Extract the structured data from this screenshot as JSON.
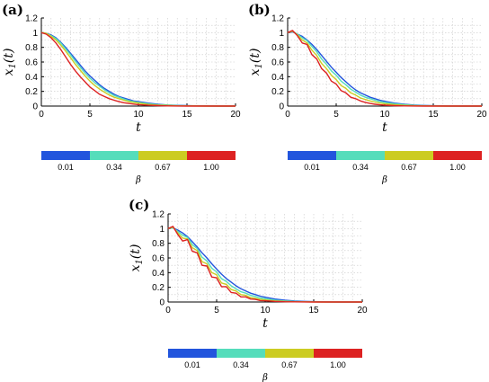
{
  "chart_data": [
    {
      "panel": "(a)",
      "type": "line",
      "xlabel": "t",
      "ylabel": "x_1(t)",
      "xlim": [
        0,
        20
      ],
      "ylim": [
        0,
        1.2
      ],
      "xticks": [
        "0",
        "5",
        "10",
        "15",
        "20"
      ],
      "yticks": [
        "0",
        "0.2",
        "0.4",
        "0.6",
        "0.8",
        "1",
        "1.2"
      ],
      "grid": true,
      "x": [
        0,
        0.5,
        1,
        1.5,
        2,
        2.5,
        3,
        3.5,
        4,
        4.5,
        5,
        5.5,
        6,
        6.5,
        7,
        7.5,
        8,
        8.5,
        9,
        9.5,
        10,
        11,
        12,
        13,
        14,
        15,
        16,
        17,
        18,
        19,
        20
      ],
      "series": [
        {
          "beta": "0.01",
          "color": "#2255dd",
          "values": [
            1.0,
            0.99,
            0.97,
            0.93,
            0.87,
            0.8,
            0.72,
            0.64,
            0.56,
            0.48,
            0.41,
            0.35,
            0.29,
            0.24,
            0.2,
            0.16,
            0.13,
            0.11,
            0.09,
            0.07,
            0.06,
            0.04,
            0.025,
            0.015,
            0.01,
            0.006,
            0.003,
            0.002,
            0.001,
            0.0,
            0.0
          ]
        },
        {
          "beta": "0.34",
          "color": "#55ddbb",
          "values": [
            1.0,
            0.99,
            0.96,
            0.92,
            0.86,
            0.78,
            0.7,
            0.61,
            0.53,
            0.45,
            0.38,
            0.32,
            0.27,
            0.22,
            0.18,
            0.145,
            0.12,
            0.095,
            0.075,
            0.06,
            0.05,
            0.03,
            0.02,
            0.012,
            0.007,
            0.004,
            0.002,
            0.001,
            0.0,
            0.0,
            0.0
          ]
        },
        {
          "beta": "0.67",
          "color": "#cccc22",
          "values": [
            1.0,
            0.99,
            0.95,
            0.9,
            0.83,
            0.75,
            0.66,
            0.57,
            0.49,
            0.41,
            0.34,
            0.28,
            0.23,
            0.19,
            0.15,
            0.12,
            0.1,
            0.08,
            0.06,
            0.05,
            0.04,
            0.022,
            0.013,
            0.008,
            0.004,
            0.002,
            0.001,
            0.0,
            0.0,
            0.0,
            0.0
          ]
        },
        {
          "beta": "1.00",
          "color": "#dd2222",
          "values": [
            1.0,
            0.98,
            0.93,
            0.86,
            0.77,
            0.67,
            0.57,
            0.48,
            0.4,
            0.33,
            0.26,
            0.21,
            0.16,
            0.13,
            0.1,
            0.08,
            0.06,
            0.045,
            0.035,
            0.027,
            0.02,
            0.011,
            0.006,
            0.003,
            0.001,
            0.0,
            0.0,
            0.0,
            0.0,
            0.0,
            0.0
          ]
        }
      ]
    },
    {
      "panel": "(b)",
      "type": "line",
      "xlabel": "t",
      "ylabel": "x_1(t)",
      "xlim": [
        0,
        20
      ],
      "ylim": [
        0,
        1.2
      ],
      "xticks": [
        "0",
        "5",
        "10",
        "15",
        "20"
      ],
      "yticks": [
        "0",
        "0.2",
        "0.4",
        "0.6",
        "0.8",
        "1",
        "1.2"
      ],
      "grid": true,
      "x": [
        0,
        0.5,
        1,
        1.5,
        2,
        2.5,
        3,
        3.5,
        4,
        4.5,
        5,
        5.5,
        6,
        6.5,
        7,
        7.5,
        8,
        8.5,
        9,
        9.5,
        10,
        11,
        12,
        13,
        14,
        15,
        16,
        17,
        18,
        19,
        20
      ],
      "series": [
        {
          "beta": "0.01",
          "color": "#2255dd",
          "values": [
            1.0,
            1.01,
            0.98,
            0.95,
            0.9,
            0.84,
            0.77,
            0.69,
            0.61,
            0.53,
            0.46,
            0.39,
            0.33,
            0.27,
            0.22,
            0.18,
            0.15,
            0.12,
            0.1,
            0.08,
            0.065,
            0.04,
            0.025,
            0.015,
            0.009,
            0.005,
            0.003,
            0.001,
            0.0,
            0.0,
            0.0
          ]
        },
        {
          "beta": "0.34",
          "color": "#55ddbb",
          "values": [
            1.0,
            1.02,
            0.98,
            0.93,
            0.89,
            0.81,
            0.74,
            0.64,
            0.57,
            0.48,
            0.42,
            0.34,
            0.29,
            0.23,
            0.19,
            0.15,
            0.12,
            0.1,
            0.08,
            0.06,
            0.05,
            0.03,
            0.018,
            0.01,
            0.005,
            0.003,
            0.001,
            0.0,
            0.0,
            0.0,
            0.0
          ]
        },
        {
          "beta": "0.67",
          "color": "#cccc22",
          "values": [
            1.0,
            1.02,
            0.97,
            0.9,
            0.86,
            0.76,
            0.69,
            0.58,
            0.51,
            0.42,
            0.36,
            0.28,
            0.24,
            0.18,
            0.15,
            0.11,
            0.09,
            0.07,
            0.055,
            0.04,
            0.032,
            0.018,
            0.01,
            0.005,
            0.002,
            0.001,
            0.0,
            0.0,
            0.0,
            0.0,
            0.0
          ]
        },
        {
          "beta": "1.00",
          "color": "#dd2222",
          "values": [
            1.0,
            1.03,
            0.96,
            0.86,
            0.84,
            0.7,
            0.64,
            0.51,
            0.45,
            0.34,
            0.3,
            0.21,
            0.18,
            0.12,
            0.1,
            0.07,
            0.05,
            0.035,
            0.025,
            0.017,
            0.012,
            0.006,
            0.003,
            0.001,
            0.0,
            0.0,
            0.0,
            0.0,
            0.0,
            0.0,
            0.0
          ]
        }
      ]
    },
    {
      "panel": "(c)",
      "type": "line",
      "xlabel": "t",
      "ylabel": "x_1(t)",
      "xlim": [
        0,
        20
      ],
      "ylim": [
        0,
        1.2
      ],
      "xticks": [
        "0",
        "5",
        "10",
        "15",
        "20"
      ],
      "yticks": [
        "0",
        "0.2",
        "0.4",
        "0.6",
        "0.8",
        "1",
        "1.2"
      ],
      "grid": true,
      "x": [
        0,
        0.5,
        1,
        1.5,
        2,
        2.5,
        3,
        3.5,
        4,
        4.5,
        5,
        5.5,
        6,
        6.5,
        7,
        7.5,
        8,
        8.5,
        9,
        9.5,
        10,
        11,
        12,
        13,
        14,
        15,
        16,
        17,
        18,
        19,
        20
      ],
      "series": [
        {
          "beta": "0.01",
          "color": "#2255dd",
          "values": [
            1.0,
            1.01,
            0.98,
            0.94,
            0.89,
            0.82,
            0.75,
            0.67,
            0.6,
            0.52,
            0.45,
            0.38,
            0.32,
            0.27,
            0.22,
            0.18,
            0.15,
            0.12,
            0.1,
            0.08,
            0.065,
            0.04,
            0.025,
            0.015,
            0.009,
            0.005,
            0.003,
            0.001,
            0.0,
            0.0,
            0.0
          ]
        },
        {
          "beta": "0.34",
          "color": "#55ddbb",
          "values": [
            1.0,
            1.01,
            0.96,
            0.91,
            0.88,
            0.78,
            0.73,
            0.61,
            0.56,
            0.46,
            0.41,
            0.32,
            0.28,
            0.22,
            0.18,
            0.14,
            0.12,
            0.09,
            0.075,
            0.055,
            0.045,
            0.026,
            0.015,
            0.008,
            0.004,
            0.002,
            0.001,
            0.0,
            0.0,
            0.0,
            0.0
          ]
        },
        {
          "beta": "0.67",
          "color": "#cccc22",
          "values": [
            1.0,
            1.02,
            0.94,
            0.87,
            0.86,
            0.74,
            0.7,
            0.55,
            0.52,
            0.4,
            0.37,
            0.26,
            0.24,
            0.17,
            0.15,
            0.1,
            0.09,
            0.06,
            0.05,
            0.035,
            0.028,
            0.015,
            0.008,
            0.004,
            0.002,
            0.001,
            0.0,
            0.0,
            0.0,
            0.0,
            0.0
          ]
        },
        {
          "beta": "1.00",
          "color": "#dd2222",
          "values": [
            1.0,
            1.03,
            0.92,
            0.83,
            0.85,
            0.69,
            0.67,
            0.5,
            0.49,
            0.34,
            0.33,
            0.21,
            0.21,
            0.13,
            0.12,
            0.07,
            0.07,
            0.04,
            0.035,
            0.02,
            0.017,
            0.008,
            0.004,
            0.002,
            0.001,
            0.0,
            0.0,
            0.0,
            0.0,
            0.0,
            0.0
          ]
        }
      ]
    }
  ],
  "colorbar": {
    "label": "β",
    "segments": [
      {
        "label": "0.01",
        "color": "#2255dd"
      },
      {
        "label": "0.34",
        "color": "#55ddbb"
      },
      {
        "label": "0.67",
        "color": "#cccc22"
      },
      {
        "label": "1.00",
        "color": "#dd2222"
      }
    ]
  }
}
